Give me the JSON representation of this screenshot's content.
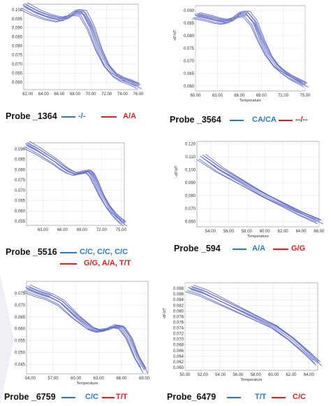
{
  "colors": {
    "curve": "#6a72c8",
    "legend_blue": "#2c79c0",
    "legend_red": "#e02020",
    "grid": "#e4e4e4",
    "axis": "#888888"
  },
  "panels": [
    {
      "id": "p1364",
      "probe": "Probe _1364",
      "legend": [
        {
          "label": "-/-",
          "color": "blue"
        },
        {
          "label": "A/A",
          "color": "red"
        }
      ]
    },
    {
      "id": "p3564",
      "probe": "Probe _3564",
      "legend": [
        {
          "label": "CA/CA",
          "color": "blue"
        },
        {
          "label": "--/--",
          "color": "red"
        }
      ]
    },
    {
      "id": "p5516",
      "probe": "Probe _5516",
      "legend": [
        {
          "label": "C/C, C/C, C/C",
          "color": "blue"
        },
        {
          "label": "G/G, A/A, T/T",
          "color": "red"
        }
      ]
    },
    {
      "id": "p594",
      "probe": "Probe _594",
      "legend": [
        {
          "label": "A/A",
          "color": "blue"
        },
        {
          "label": "G/G",
          "color": "red"
        }
      ]
    },
    {
      "id": "p6759",
      "probe": "Probe _6759",
      "legend": [
        {
          "label": "C/C",
          "color": "blue"
        },
        {
          "label": "T/T",
          "color": "red"
        }
      ]
    },
    {
      "id": "p6479",
      "probe": "Probe_6479",
      "legend": [
        {
          "label": "T/T",
          "color": "blue"
        },
        {
          "label": "C/C",
          "color": "red"
        }
      ]
    }
  ],
  "chart_data": [
    {
      "type": "line",
      "xlabel": "",
      "ylabel": "",
      "xlim": [
        61.5,
        76
      ],
      "ylim": [
        0.056,
        0.103
      ],
      "xticks": [
        "62.00",
        "64.00",
        "66.00",
        "68.00",
        "70.00",
        "72.00",
        "74.00",
        "76.00"
      ],
      "yticks": [
        "0.060",
        "0.065",
        "0.070",
        "0.075",
        "0.080",
        "0.085",
        "0.090",
        "0.095",
        "0.100"
      ],
      "curve_count": 8,
      "series": [
        {
          "x": [
            61.5,
            63,
            64.5,
            66,
            67,
            68,
            69,
            70,
            71,
            72,
            73,
            74,
            75,
            76
          ],
          "y": [
            0.102,
            0.0985,
            0.096,
            0.0945,
            0.0955,
            0.0985,
            0.098,
            0.09,
            0.078,
            0.069,
            0.064,
            0.0615,
            0.06,
            0.058
          ]
        }
      ]
    },
    {
      "type": "line",
      "xlabel": "Temperature",
      "ylabel": "-dF/dT",
      "xlim": [
        60,
        75
      ],
      "ylim": [
        0.058,
        0.092
      ],
      "xticks": [
        "60.00",
        "63.00",
        "66.00",
        "69.00",
        "72.00",
        "75.00"
      ],
      "yticks": [
        "0.060",
        "0.065",
        "0.070",
        "0.075",
        "0.080",
        "0.085",
        "0.090"
      ],
      "curve_count": 8,
      "series": [
        {
          "x": [
            60,
            61,
            62,
            63,
            64,
            65,
            66,
            67,
            68,
            69,
            70,
            71,
            72,
            73,
            74,
            75
          ],
          "y": [
            0.088,
            0.0875,
            0.0868,
            0.086,
            0.0855,
            0.0863,
            0.0885,
            0.0885,
            0.085,
            0.078,
            0.072,
            0.068,
            0.0655,
            0.0635,
            0.062,
            0.0605
          ]
        }
      ]
    },
    {
      "type": "line",
      "xlabel": "",
      "ylabel": "",
      "xlim": [
        60.5,
        75.5
      ],
      "ylim": [
        0.053,
        0.093
      ],
      "xticks": [
        "63.00",
        "66.00",
        "69.00",
        "72.00",
        "75.00"
      ],
      "yticks": [
        "0.055",
        "0.060",
        "0.065",
        "0.070",
        "0.075",
        "0.080",
        "0.085",
        "0.090"
      ],
      "curve_count": 8,
      "series": [
        {
          "x": [
            60.5,
            62,
            63.5,
            65,
            66,
            67,
            68,
            69,
            70,
            70.5,
            71,
            72,
            73,
            74,
            75,
            75.5
          ],
          "y": [
            0.092,
            0.0895,
            0.0865,
            0.0835,
            0.081,
            0.079,
            0.0778,
            0.0785,
            0.079,
            0.0775,
            0.0745,
            0.0675,
            0.062,
            0.058,
            0.055,
            0.054
          ]
        }
      ]
    },
    {
      "type": "line",
      "xlabel": "Temperature",
      "ylabel": "-dF/dT",
      "xlim": [
        52.5,
        66
      ],
      "ylim": [
        0.056,
        0.122
      ],
      "xticks": [
        "54.00",
        "56.00",
        "58.00",
        "60.00",
        "62.00",
        "64.00",
        "66.00"
      ],
      "yticks": [
        "0.060",
        "0.070",
        "0.080",
        "0.090",
        "0.100",
        "0.110",
        "0.120"
      ],
      "curve_count": 8,
      "series": [
        {
          "x": [
            53,
            55,
            57,
            58,
            60,
            62,
            64,
            66
          ],
          "y": [
            0.11,
            0.1,
            0.092,
            0.088,
            0.08,
            0.073,
            0.066,
            0.06
          ]
        }
      ]
    },
    {
      "type": "line",
      "xlabel": "Temperature",
      "ylabel": "",
      "xlim": [
        53.5,
        69.5
      ],
      "ylim": [
        0.041,
        0.08
      ],
      "xticks": [
        "54.00",
        "57.00",
        "60.00",
        "63.00",
        "66.00",
        "69.00"
      ],
      "yticks": [
        "0.045",
        "0.050",
        "0.055",
        "0.060",
        "0.065",
        "0.070",
        "0.075"
      ],
      "curve_count": 8,
      "series": [
        {
          "x": [
            53.5,
            55,
            56.5,
            58,
            59,
            60,
            61,
            62,
            63,
            64,
            65,
            66,
            67,
            68,
            69
          ],
          "y": [
            0.077,
            0.075,
            0.0735,
            0.071,
            0.068,
            0.065,
            0.0625,
            0.06,
            0.059,
            0.0595,
            0.061,
            0.0605,
            0.056,
            0.048,
            0.0425
          ]
        }
      ]
    },
    {
      "type": "line",
      "xlabel": "Temperature",
      "ylabel": "-dF/dT",
      "xlim": [
        50,
        65
      ],
      "ylim": [
        0.059,
        0.09
      ],
      "xticks": [
        "50.00",
        "52.00",
        "54.00",
        "56.00",
        "58.00",
        "60.00",
        "62.00",
        "64.00"
      ],
      "yticks": [
        "0.060",
        "0.062",
        "0.064",
        "0.066",
        "0.068",
        "0.070",
        "0.072",
        "0.074",
        "0.076",
        "0.078",
        "0.080",
        "0.082",
        "0.084",
        "0.086",
        "0.088"
      ],
      "curve_count": 8,
      "series": [
        {
          "x": [
            50.5,
            52,
            54,
            56,
            58,
            60,
            62,
            64,
            65
          ],
          "y": [
            0.088,
            0.0865,
            0.0835,
            0.0805,
            0.0775,
            0.0745,
            0.07,
            0.0645,
            0.0615
          ]
        }
      ]
    }
  ]
}
